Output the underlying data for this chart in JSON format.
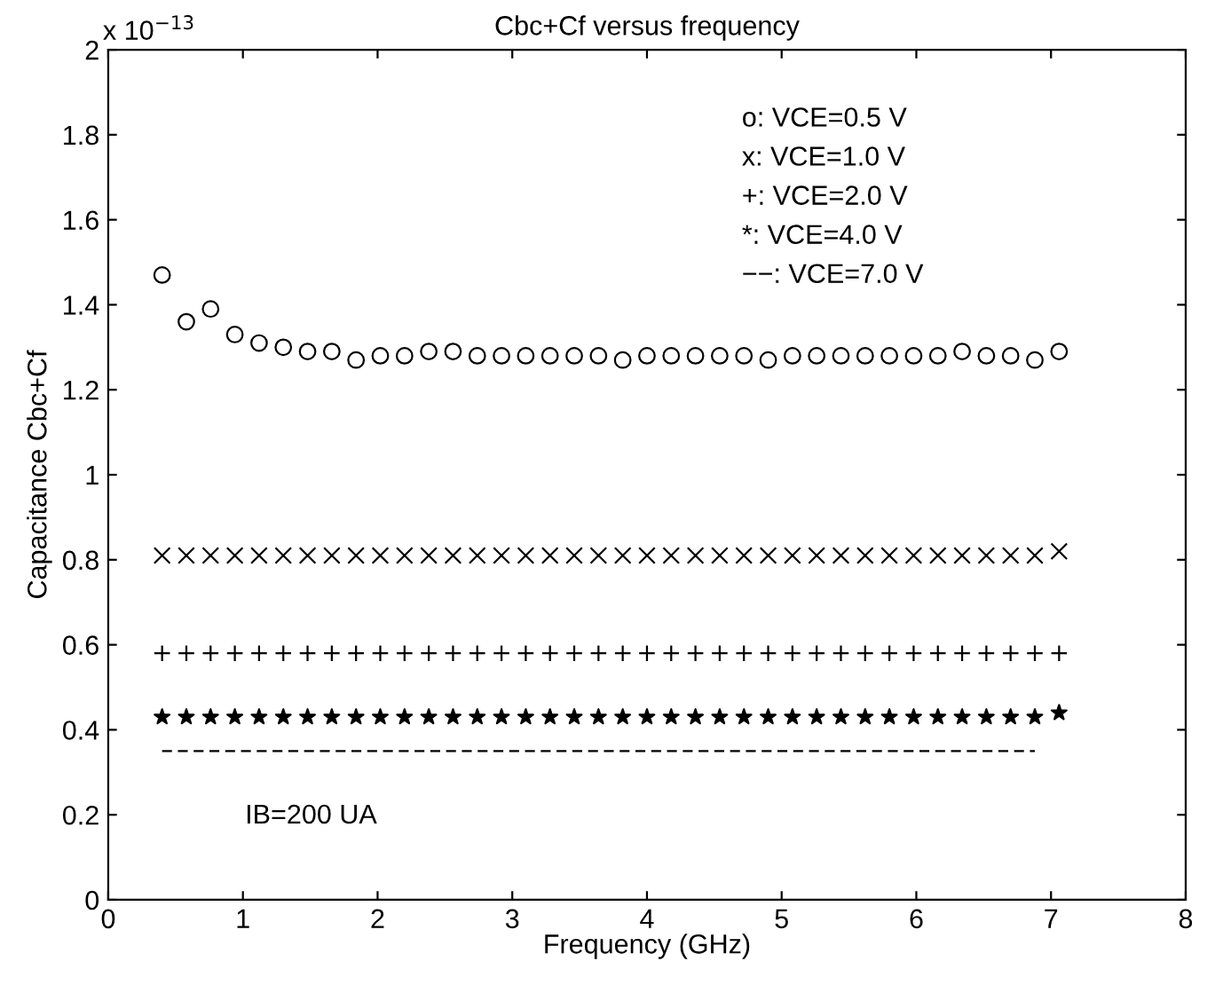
{
  "chart_data": {
    "type": "scatter",
    "title": "Cbc+Cf versus frequency",
    "xlabel": "Frequency (GHz)",
    "ylabel": "Capacitance Cbc+Cf",
    "annotations": [
      "x 10$^{−13}$",
      "o: VCE=0.5 V",
      "x: VCE=1.0 V",
      "+: VCE=2.0 V",
      "*: VCE=4.0 V",
      "−−: VCE=7.0 V",
      "IB=200 UA"
    ],
    "x": [
      0.4,
      0.58,
      0.76,
      0.94,
      1.12,
      1.3,
      1.48,
      1.66,
      1.84,
      2.02,
      2.2,
      2.38,
      2.56,
      2.74,
      2.92,
      3.1,
      3.28,
      3.46,
      3.64,
      3.82,
      4.0,
      4.18,
      4.36,
      4.54,
      4.72,
      4.9,
      5.08,
      5.26,
      5.44,
      5.62,
      5.8,
      5.98,
      6.16,
      6.34,
      6.52,
      6.7,
      6.88,
      7.06
    ],
    "series": [
      {
        "color": "#000000",
        "marker": "circle",
        "values": [
          1.47,
          1.36,
          1.39,
          1.33,
          1.31,
          1.3,
          1.29,
          1.29,
          1.27,
          1.28,
          1.28,
          1.29,
          1.29,
          1.28,
          1.28,
          1.28,
          1.28,
          1.28,
          1.28,
          1.27,
          1.28,
          1.28,
          1.28,
          1.28,
          1.28,
          1.27,
          1.28,
          1.28,
          1.28,
          1.28,
          1.28,
          1.28,
          1.28,
          1.29,
          1.28,
          1.28,
          1.27,
          1.29
        ]
      },
      {
        "color": "#000000",
        "marker": "cross",
        "values": [
          0.81,
          0.81,
          0.81,
          0.81,
          0.81,
          0.81,
          0.81,
          0.81,
          0.81,
          0.81,
          0.81,
          0.81,
          0.81,
          0.81,
          0.81,
          0.81,
          0.81,
          0.81,
          0.81,
          0.81,
          0.81,
          0.81,
          0.81,
          0.81,
          0.81,
          0.81,
          0.81,
          0.81,
          0.81,
          0.81,
          0.81,
          0.81,
          0.81,
          0.81,
          0.81,
          0.81,
          0.81,
          0.82
        ]
      },
      {
        "color": "#000000",
        "marker": "plus",
        "values": [
          0.58,
          0.58,
          0.58,
          0.58,
          0.58,
          0.58,
          0.58,
          0.58,
          0.58,
          0.58,
          0.58,
          0.58,
          0.58,
          0.58,
          0.58,
          0.58,
          0.58,
          0.58,
          0.58,
          0.58,
          0.58,
          0.58,
          0.58,
          0.58,
          0.58,
          0.58,
          0.58,
          0.58,
          0.58,
          0.58,
          0.58,
          0.58,
          0.58,
          0.58,
          0.58,
          0.58,
          0.58,
          0.58
        ]
      },
      {
        "color": "#000000",
        "marker": "star",
        "values": [
          0.43,
          0.43,
          0.43,
          0.43,
          0.43,
          0.43,
          0.43,
          0.43,
          0.43,
          0.43,
          0.43,
          0.43,
          0.43,
          0.43,
          0.43,
          0.43,
          0.43,
          0.43,
          0.43,
          0.43,
          0.43,
          0.43,
          0.43,
          0.43,
          0.43,
          0.43,
          0.43,
          0.43,
          0.43,
          0.43,
          0.43,
          0.43,
          0.43,
          0.43,
          0.43,
          0.43,
          0.43,
          0.44
        ]
      },
      {
        "type": "line",
        "color": "#000000",
        "marker": "none",
        "line_style": "dashed",
        "values": [
          0.35,
          0.35,
          0.35,
          0.35,
          0.35,
          0.35,
          0.35,
          0.35,
          0.35,
          0.35,
          0.35,
          0.35,
          0.35,
          0.35,
          0.35,
          0.35,
          0.35,
          0.35,
          0.35,
          0.35,
          0.35,
          0.35,
          0.35,
          0.35,
          0.35,
          0.35,
          0.35,
          0.35,
          0.35,
          0.35,
          0.35,
          0.35,
          0.35,
          0.35,
          0.35,
          0.35,
          0.35,
          null
        ]
      }
    ],
    "xlim": [
      0,
      8
    ],
    "xticks": [
      0,
      1,
      2,
      3,
      4,
      5,
      6,
      7,
      8
    ],
    "ylim": [
      0,
      2
    ],
    "yticks": [
      0,
      0.2,
      0.4,
      0.6,
      0.8,
      1,
      1.2,
      1.4,
      1.6,
      1.8,
      2
    ],
    "grid": false,
    "legend": false
  }
}
